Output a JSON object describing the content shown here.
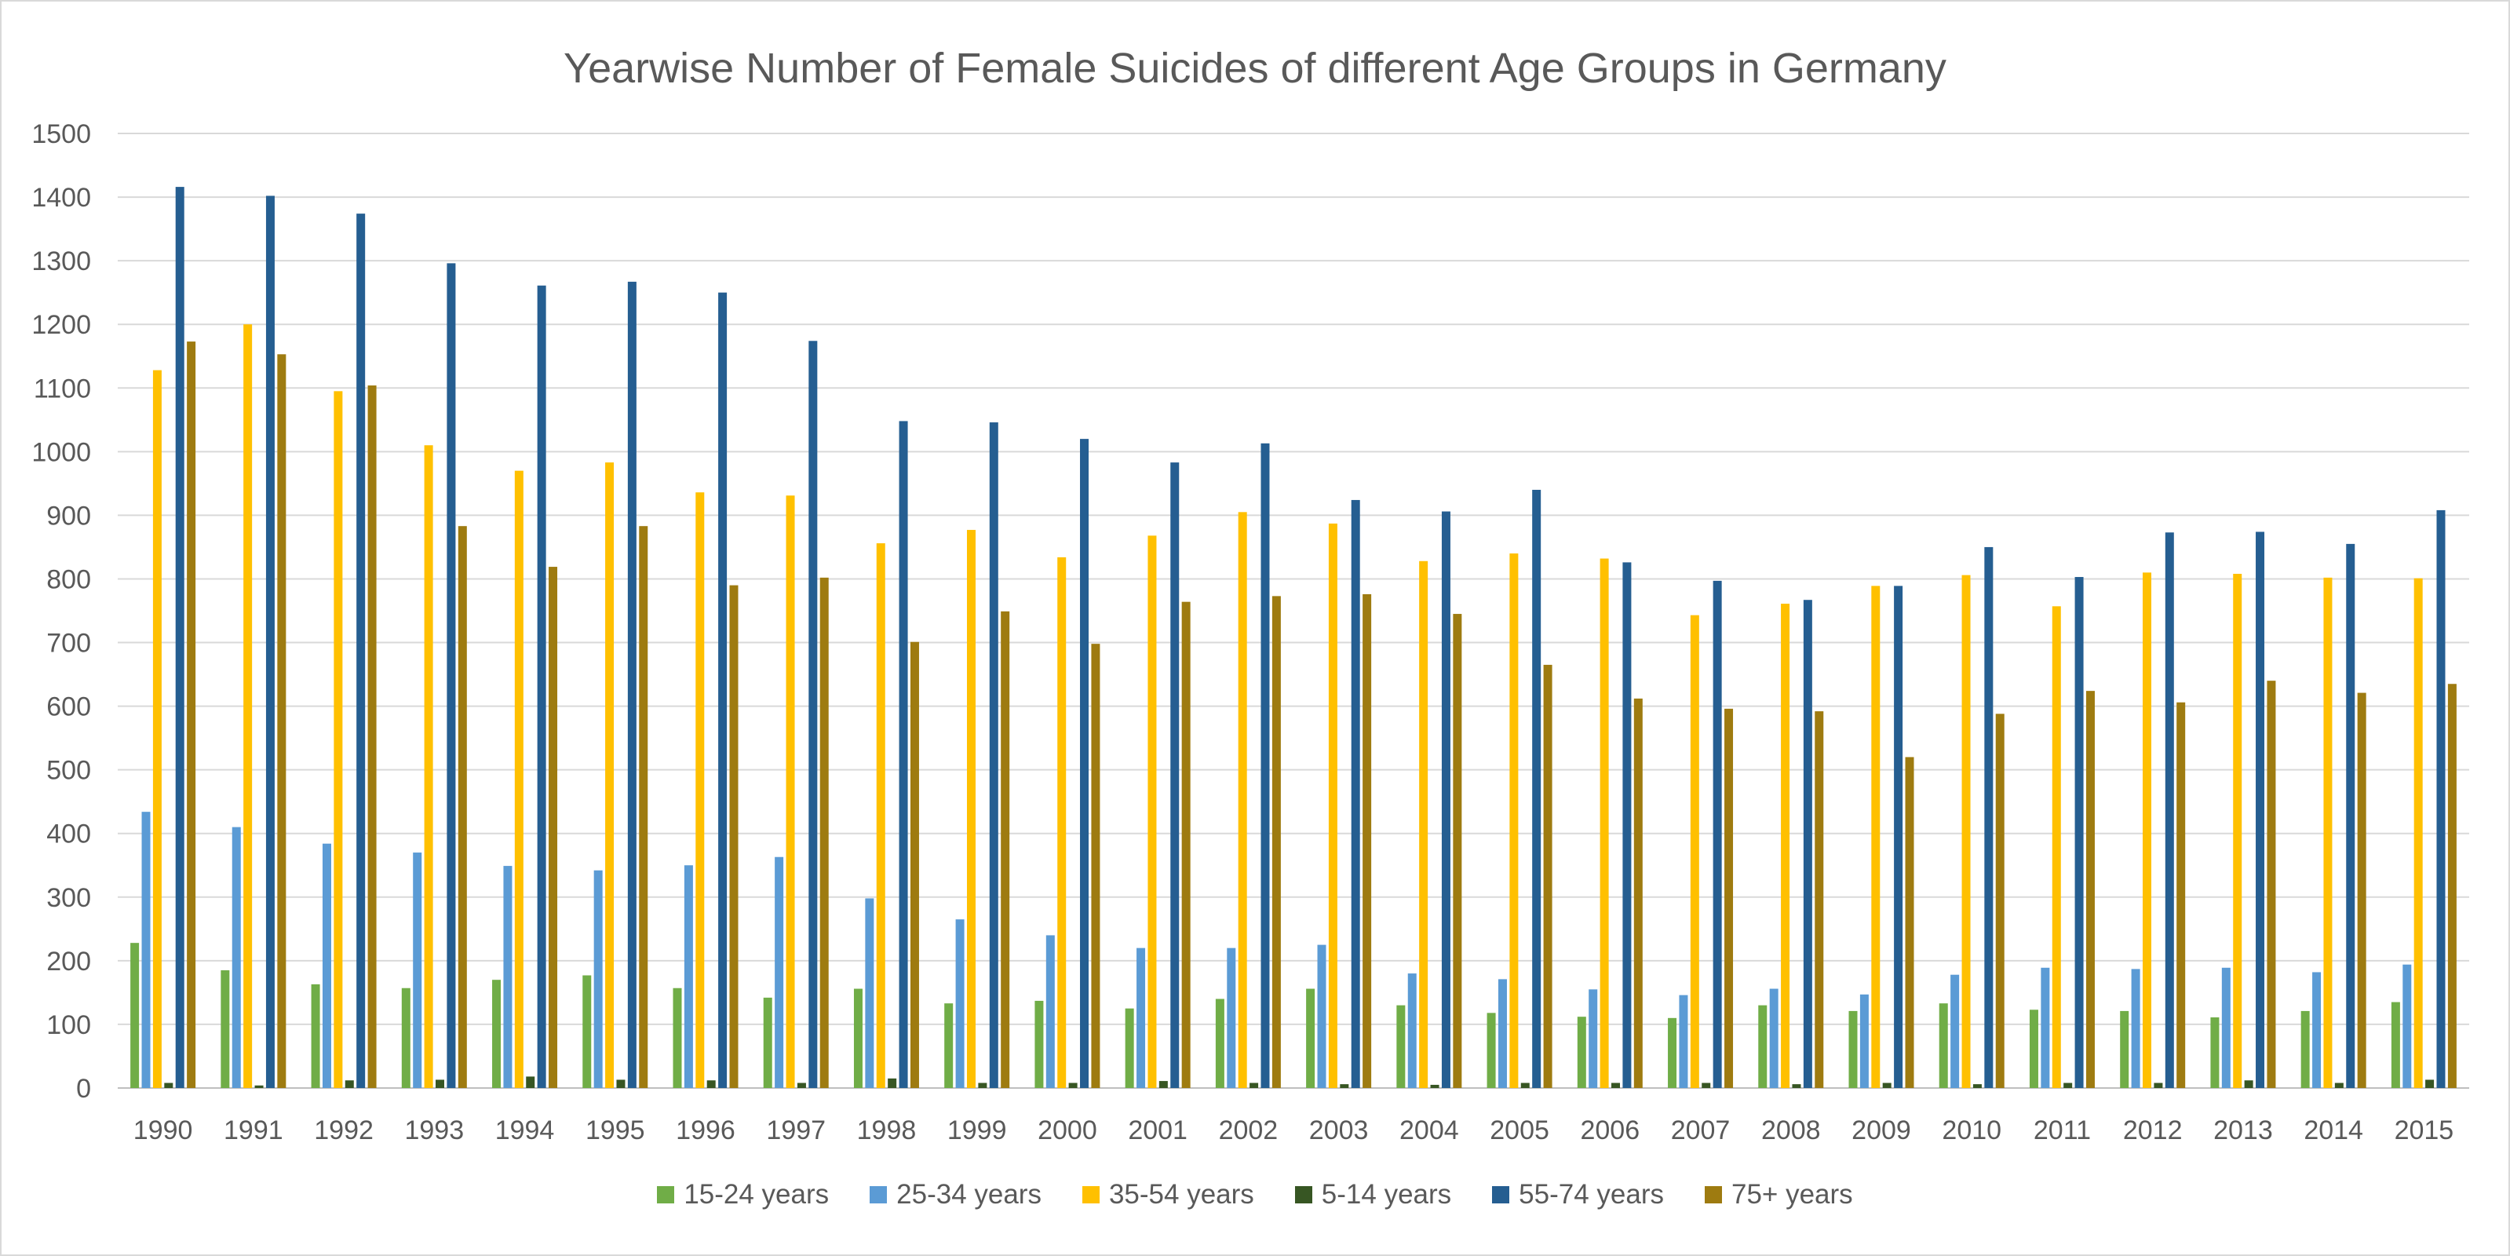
{
  "chart_data": {
    "type": "bar",
    "title": "Yearwise Number of Female Suicides of different Age Groups in Germany",
    "xlabel": "",
    "ylabel": "",
    "ylim": [
      0,
      1500
    ],
    "yticks": [
      "0",
      "100",
      "200",
      "300",
      "400",
      "500",
      "600",
      "700",
      "800",
      "900",
      "1000",
      "1100",
      "1200",
      "1300",
      "1400",
      "1500"
    ],
    "grid": true,
    "legend_position": "bottom",
    "categories": [
      "1990",
      "1991",
      "1992",
      "1993",
      "1994",
      "1995",
      "1996",
      "1997",
      "1998",
      "1999",
      "2000",
      "2001",
      "2002",
      "2003",
      "2004",
      "2005",
      "2006",
      "2007",
      "2008",
      "2009",
      "2010",
      "2011",
      "2012",
      "2013",
      "2014",
      "2015"
    ],
    "series": [
      {
        "name": "15-24 years",
        "color": "#70ad47",
        "values": [
          228,
          185,
          163,
          157,
          170,
          177,
          157,
          142,
          156,
          133,
          137,
          125,
          140,
          156,
          130,
          118,
          112,
          110,
          130,
          121,
          133,
          123,
          121,
          111,
          121,
          135
        ]
      },
      {
        "name": "25-34 years",
        "color": "#5b9bd5",
        "values": [
          434,
          410,
          384,
          370,
          349,
          342,
          350,
          363,
          298,
          265,
          240,
          220,
          220,
          225,
          180,
          171,
          155,
          146,
          156,
          147,
          178,
          189,
          187,
          189,
          182,
          194
        ]
      },
      {
        "name": "35-54 years",
        "color": "#ffc000",
        "values": [
          1128,
          1200,
          1095,
          1010,
          970,
          983,
          936,
          931,
          856,
          877,
          834,
          868,
          905,
          887,
          828,
          840,
          832,
          743,
          761,
          789,
          806,
          757,
          810,
          808,
          802,
          801
        ]
      },
      {
        "name": "5-14 years",
        "color": "#375623",
        "values": [
          8,
          4,
          12,
          13,
          18,
          13,
          12,
          8,
          15,
          8,
          8,
          11,
          8,
          6,
          5,
          8,
          8,
          8,
          6,
          8,
          6,
          8,
          8,
          12,
          8,
          13
        ]
      },
      {
        "name": "55-74 years",
        "color": "#255e91",
        "values": [
          1416,
          1402,
          1374,
          1296,
          1261,
          1267,
          1250,
          1174,
          1048,
          1046,
          1020,
          983,
          1013,
          924,
          906,
          940,
          826,
          797,
          767,
          789,
          850,
          803,
          873,
          874,
          855,
          908
        ]
      },
      {
        "name": "75+ years",
        "color": "#9e7b10",
        "values": [
          1173,
          1153,
          1104,
          883,
          819,
          883,
          790,
          802,
          701,
          749,
          698,
          764,
          773,
          776,
          745,
          665,
          612,
          596,
          592,
          520,
          588,
          624,
          606,
          640,
          621,
          635
        ]
      }
    ]
  }
}
